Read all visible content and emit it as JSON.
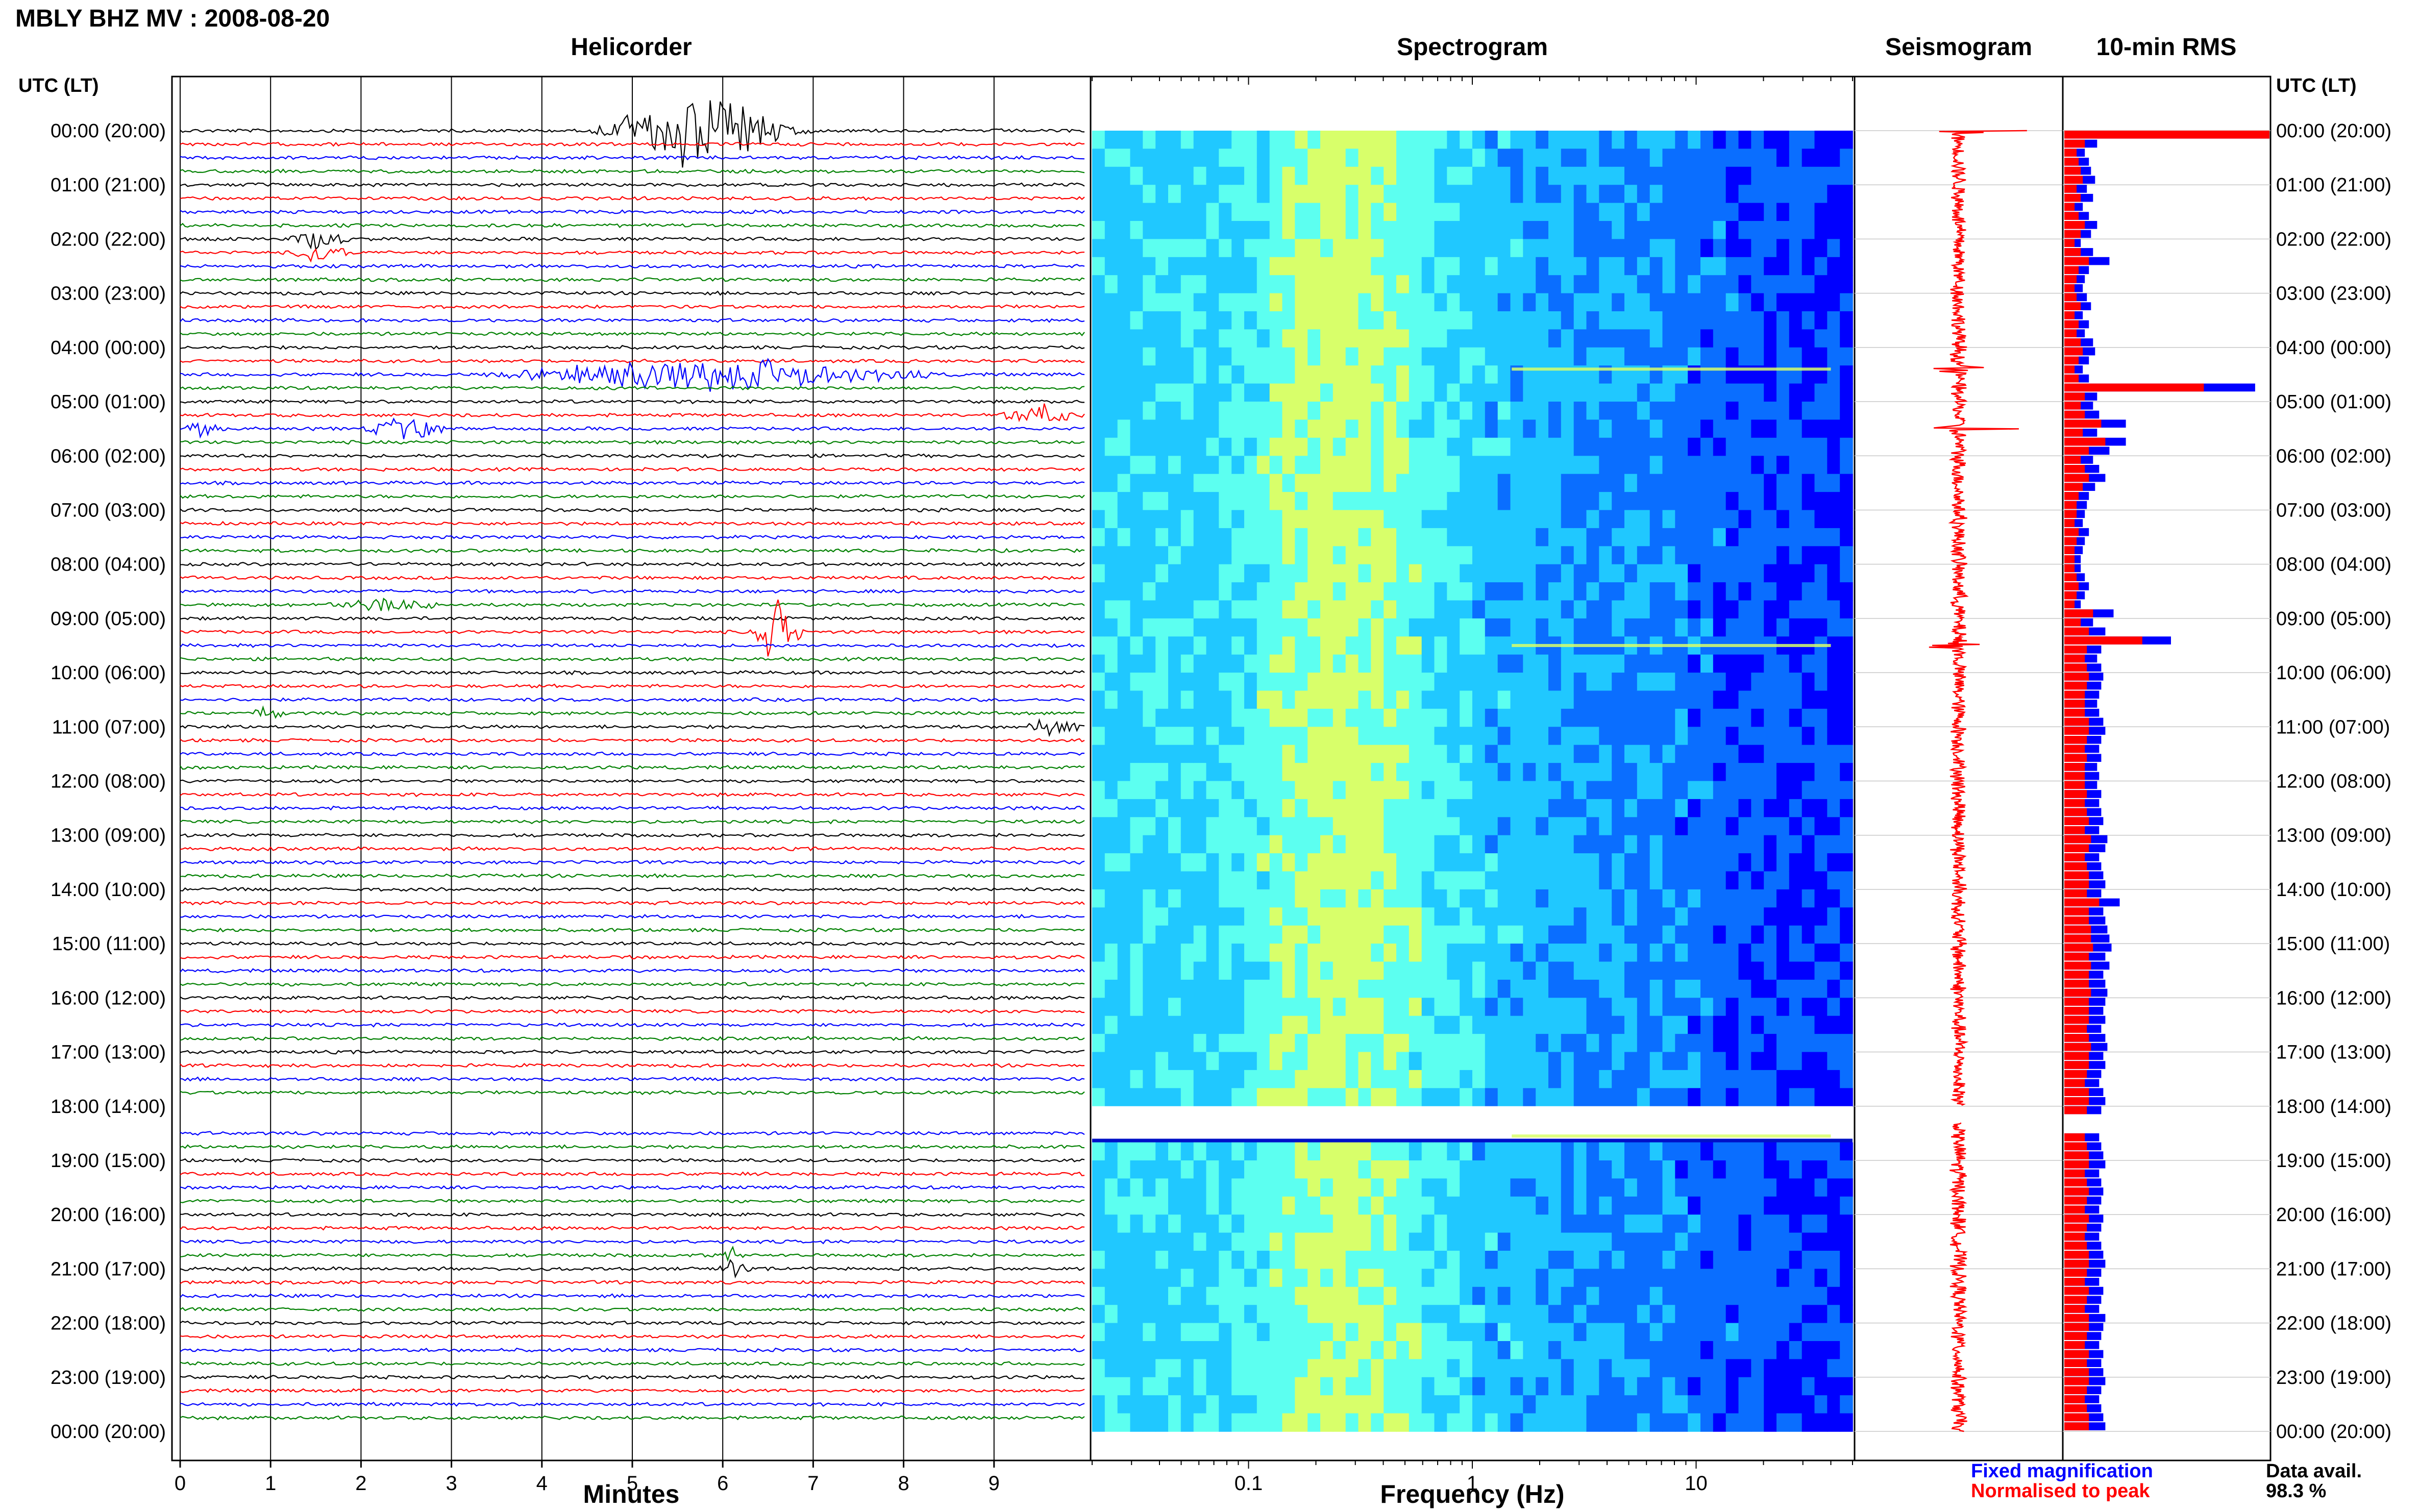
{
  "page": {
    "title": "MBLY BHZ MV : 2008-08-20",
    "data_avail_label": "Data avail.",
    "data_avail_value": "98.3 %"
  },
  "panels": {
    "helicorder": "Helicorder",
    "spectrogram": "Spectrogram",
    "seismogram": "Seismogram",
    "rms": "10-min RMS"
  },
  "legend": {
    "fixed": "Fixed magnification",
    "normalised": "Normalised to peak",
    "fixed_color": "#0000ff",
    "normalised_color": "#ff0000"
  },
  "chart_data": [
    {
      "type": "line",
      "panel": "helicorder",
      "title": "Helicorder",
      "xlabel": "Minutes",
      "ylabel": "UTC (LT)",
      "xlim": [
        0,
        10
      ],
      "x_ticks": [
        0,
        1,
        2,
        3,
        4,
        5,
        6,
        7,
        8,
        9
      ],
      "y_axis_title": "UTC (LT)",
      "y_ticks": [
        "00:00 (20:00)",
        "01:00 (21:00)",
        "02:00 (22:00)",
        "03:00 (23:00)",
        "04:00 (00:00)",
        "05:00 (01:00)",
        "06:00 (02:00)",
        "07:00 (03:00)",
        "08:00 (04:00)",
        "09:00 (05:00)",
        "10:00 (06:00)",
        "11:00 (07:00)",
        "12:00 (08:00)",
        "13:00 (09:00)",
        "14:00 (10:00)",
        "15:00 (11:00)",
        "16:00 (12:00)",
        "17:00 (13:00)",
        "18:00 (14:00)",
        "19:00 (15:00)",
        "20:00 (16:00)",
        "21:00 (17:00)",
        "22:00 (18:00)",
        "23:00 (19:00)",
        "00:00 (20:00)"
      ],
      "trace_colors": [
        "#000000",
        "#ff0000",
        "#0000ff",
        "#008000"
      ],
      "events": [
        {
          "hour": 0.0,
          "minute_start": 4.5,
          "minute_end": 7.0,
          "amplitude": 1.0,
          "color": "#000000"
        },
        {
          "hour": 2.1,
          "minute_start": 1.2,
          "minute_end": 1.9,
          "amplitude": 0.3,
          "color": "#0000ff"
        },
        {
          "hour": 4.4,
          "minute_start": 3.3,
          "minute_end": 8.5,
          "amplitude": 0.45,
          "color": "#0000ff"
        },
        {
          "hour": 5.3,
          "minute_start": 9.0,
          "minute_end": 10.0,
          "amplitude": 0.3,
          "color": "#000000"
        },
        {
          "hour": 5.6,
          "minute_start": 2.0,
          "minute_end": 3.0,
          "amplitude": 0.3,
          "color": "#0000ff"
        },
        {
          "hour": 5.5,
          "minute_start": 0.0,
          "minute_end": 0.5,
          "amplitude": 0.2,
          "color": "#ff0000"
        },
        {
          "hour": 8.8,
          "minute_start": 1.4,
          "minute_end": 3.0,
          "amplitude": 0.15,
          "color": "#000000"
        },
        {
          "hour": 9.3,
          "minute_start": 6.3,
          "minute_end": 6.9,
          "amplitude": 0.9,
          "color": "#000000"
        },
        {
          "hour": 10.7,
          "minute_start": 0.8,
          "minute_end": 1.2,
          "amplitude": 0.2,
          "color": "#000000"
        },
        {
          "hour": 11.0,
          "minute_start": 9.3,
          "minute_end": 10.0,
          "amplitude": 0.2,
          "color": "#0000ff"
        },
        {
          "hour": 20.9,
          "minute_start": 5.9,
          "minute_end": 6.3,
          "amplitude": 0.2,
          "color": "#0000ff"
        }
      ],
      "gap": {
        "start_hour": 18.0,
        "end_hour": 18.3
      }
    },
    {
      "type": "heatmap",
      "panel": "spectrogram",
      "title": "Spectrogram",
      "xlabel": "Frequency (Hz)",
      "x_scale": "log",
      "xlim": [
        0.02,
        50
      ],
      "x_ticks": [
        0.1,
        1,
        10
      ],
      "x_tick_labels": [
        "0.1",
        "1",
        "10"
      ],
      "ylim_hours": [
        0,
        24
      ],
      "colormap": [
        "#00008a",
        "#0000ff",
        "#0a6eff",
        "#20c8ff",
        "#5cfff0",
        "#d8ff6a"
      ],
      "gap": {
        "start_hour": 18.0,
        "end_hour": 18.6
      },
      "bright_lines_hours": [
        4.4,
        9.5,
        18.55
      ]
    },
    {
      "type": "line",
      "panel": "seismogram",
      "title": "Seismogram",
      "color": "#ff0000",
      "events_hours": [
        0.0,
        4.4,
        5.5,
        9.5
      ],
      "gap": {
        "start_hour": 18.0,
        "end_hour": 18.3
      }
    },
    {
      "type": "bar",
      "panel": "rms",
      "title": "10-min RMS",
      "orientation": "horizontal",
      "bin_minutes": 10,
      "series": [
        {
          "name": "Fixed magnification",
          "color": "#0000ff",
          "values": [
            1.0,
            0.16,
            0.1,
            0.12,
            0.13,
            0.15,
            0.11,
            0.14,
            0.09,
            0.12,
            0.16,
            0.13,
            0.08,
            0.14,
            0.22,
            0.12,
            0.1,
            0.09,
            0.11,
            0.13,
            0.09,
            0.12,
            0.1,
            0.14,
            0.15,
            0.12,
            0.09,
            0.12,
            0.93,
            0.16,
            0.14,
            0.17,
            0.3,
            0.16,
            0.3,
            0.22,
            0.14,
            0.17,
            0.2,
            0.15,
            0.12,
            0.11,
            0.1,
            0.09,
            0.12,
            0.1,
            0.09,
            0.08,
            0.08,
            0.1,
            0.12,
            0.1,
            0.08,
            0.24,
            0.14,
            0.2,
            0.52,
            0.18,
            0.16,
            0.18,
            0.19,
            0.18,
            0.17,
            0.16,
            0.17,
            0.19,
            0.2,
            0.18,
            0.17,
            0.18,
            0.16,
            0.17,
            0.16,
            0.18,
            0.17,
            0.18,
            0.19,
            0.17,
            0.21,
            0.2,
            0.17,
            0.18,
            0.19,
            0.2,
            0.18,
            0.27,
            0.19,
            0.2,
            0.21,
            0.22,
            0.23,
            0.2,
            0.22,
            0.19,
            0.2,
            0.21,
            0.2,
            0.19,
            0.2,
            0.18,
            0.2,
            0.21,
            0.19,
            0.2,
            0.18,
            0.17,
            0.19,
            0.2,
            0.18,
            0.0,
            0.0,
            0.17,
            0.18,
            0.19,
            0.2,
            0.17,
            0.18,
            0.19,
            0.18,
            0.17,
            0.19,
            0.18,
            0.17,
            0.18,
            0.19,
            0.2,
            0.18,
            0.17,
            0.19,
            0.18,
            0.17,
            0.2,
            0.19,
            0.18,
            0.17,
            0.19,
            0.18,
            0.19,
            0.2,
            0.18,
            0.17,
            0.18,
            0.19,
            0.2
          ]
        },
        {
          "name": "Normalised to peak",
          "color": "#ff0000",
          "values": [
            1.0,
            0.1,
            0.06,
            0.07,
            0.08,
            0.09,
            0.06,
            0.08,
            0.05,
            0.07,
            0.1,
            0.08,
            0.05,
            0.08,
            0.12,
            0.07,
            0.06,
            0.05,
            0.06,
            0.08,
            0.05,
            0.07,
            0.06,
            0.08,
            0.09,
            0.07,
            0.05,
            0.07,
            0.68,
            0.1,
            0.08,
            0.1,
            0.18,
            0.09,
            0.2,
            0.12,
            0.08,
            0.1,
            0.12,
            0.09,
            0.07,
            0.06,
            0.06,
            0.05,
            0.07,
            0.06,
            0.05,
            0.05,
            0.05,
            0.06,
            0.07,
            0.06,
            0.05,
            0.14,
            0.08,
            0.12,
            0.38,
            0.11,
            0.1,
            0.11,
            0.12,
            0.11,
            0.1,
            0.1,
            0.1,
            0.12,
            0.12,
            0.11,
            0.1,
            0.11,
            0.1,
            0.1,
            0.1,
            0.11,
            0.1,
            0.11,
            0.12,
            0.1,
            0.13,
            0.12,
            0.1,
            0.11,
            0.12,
            0.12,
            0.11,
            0.17,
            0.12,
            0.12,
            0.13,
            0.13,
            0.14,
            0.12,
            0.13,
            0.12,
            0.12,
            0.13,
            0.12,
            0.12,
            0.12,
            0.11,
            0.12,
            0.13,
            0.12,
            0.12,
            0.11,
            0.1,
            0.12,
            0.12,
            0.11,
            0.0,
            0.0,
            0.1,
            0.11,
            0.12,
            0.12,
            0.1,
            0.11,
            0.12,
            0.11,
            0.1,
            0.12,
            0.11,
            0.1,
            0.11,
            0.12,
            0.12,
            0.11,
            0.1,
            0.12,
            0.11,
            0.1,
            0.12,
            0.12,
            0.11,
            0.1,
            0.12,
            0.11,
            0.12,
            0.12,
            0.11,
            0.1,
            0.11,
            0.12,
            0.12
          ]
        }
      ]
    }
  ]
}
